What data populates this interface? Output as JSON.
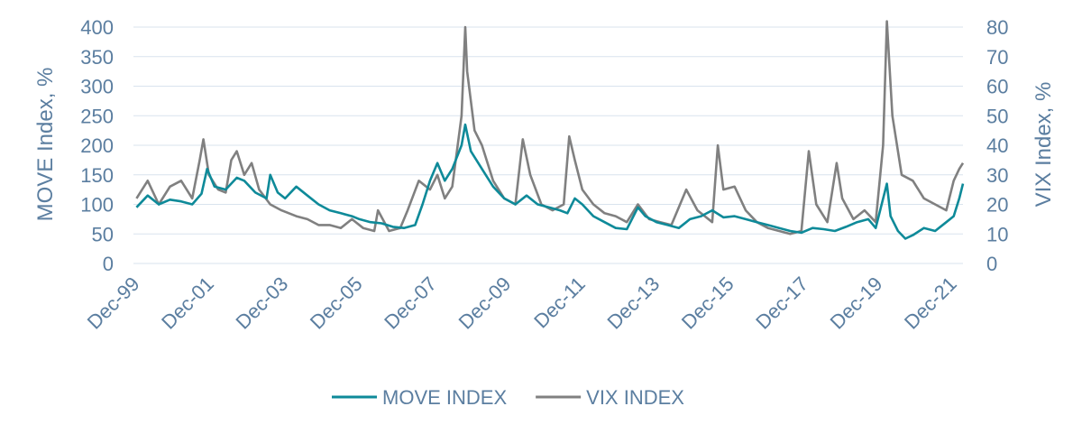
{
  "chart_data": {
    "type": "line",
    "title": "",
    "ylabel_left": "MOVE Index, %",
    "ylabel_right": "VIX Index, %",
    "ylim_left": [
      0,
      400
    ],
    "ylim_right": [
      0,
      80
    ],
    "yticks_left": [
      "0",
      "50",
      "100",
      "150",
      "200",
      "250",
      "300",
      "350",
      "400"
    ],
    "yticks_right": [
      "0",
      "10",
      "20",
      "30",
      "40",
      "50",
      "60",
      "70",
      "80"
    ],
    "xlim": [
      1999.917,
      2022.25
    ],
    "xticks": [
      {
        "label": "Dec-99",
        "x": 1999.917
      },
      {
        "label": "Dec-01",
        "x": 2001.917
      },
      {
        "label": "Dec-03",
        "x": 2003.917
      },
      {
        "label": "Dec-05",
        "x": 2005.917
      },
      {
        "label": "Dec-07",
        "x": 2007.917
      },
      {
        "label": "Dec-09",
        "x": 2009.917
      },
      {
        "label": "Dec-11",
        "x": 2011.917
      },
      {
        "label": "Dec-13",
        "x": 2013.917
      },
      {
        "label": "Dec-15",
        "x": 2015.917
      },
      {
        "label": "Dec-17",
        "x": 2017.917
      },
      {
        "label": "Dec-19",
        "x": 2019.917
      },
      {
        "label": "Dec-21",
        "x": 2021.917
      }
    ],
    "grid": true,
    "legend_position": "bottom",
    "series": [
      {
        "name": "MOVE INDEX",
        "axis": "left",
        "color": "#0e8a99",
        "points": [
          [
            2000.0,
            95
          ],
          [
            2000.3,
            115
          ],
          [
            2000.6,
            100
          ],
          [
            2000.9,
            108
          ],
          [
            2001.2,
            105
          ],
          [
            2001.5,
            100
          ],
          [
            2001.75,
            118
          ],
          [
            2001.9,
            160
          ],
          [
            2002.1,
            130
          ],
          [
            2002.4,
            125
          ],
          [
            2002.7,
            145
          ],
          [
            2002.9,
            140
          ],
          [
            2003.2,
            120
          ],
          [
            2003.5,
            110
          ],
          [
            2003.6,
            150
          ],
          [
            2003.8,
            120
          ],
          [
            2004.0,
            110
          ],
          [
            2004.3,
            130
          ],
          [
            2004.6,
            115
          ],
          [
            2004.9,
            100
          ],
          [
            2005.2,
            90
          ],
          [
            2005.5,
            85
          ],
          [
            2005.8,
            80
          ],
          [
            2006.0,
            75
          ],
          [
            2006.3,
            70
          ],
          [
            2006.6,
            68
          ],
          [
            2006.9,
            62
          ],
          [
            2007.2,
            60
          ],
          [
            2007.5,
            65
          ],
          [
            2007.7,
            100
          ],
          [
            2007.9,
            140
          ],
          [
            2008.1,
            170
          ],
          [
            2008.3,
            140
          ],
          [
            2008.5,
            160
          ],
          [
            2008.75,
            200
          ],
          [
            2008.85,
            235
          ],
          [
            2009.0,
            190
          ],
          [
            2009.3,
            160
          ],
          [
            2009.6,
            130
          ],
          [
            2009.9,
            110
          ],
          [
            2010.2,
            100
          ],
          [
            2010.5,
            115
          ],
          [
            2010.8,
            100
          ],
          [
            2011.1,
            95
          ],
          [
            2011.4,
            90
          ],
          [
            2011.6,
            85
          ],
          [
            2011.8,
            110
          ],
          [
            2012.0,
            100
          ],
          [
            2012.3,
            80
          ],
          [
            2012.6,
            70
          ],
          [
            2012.9,
            60
          ],
          [
            2013.2,
            58
          ],
          [
            2013.5,
            95
          ],
          [
            2013.7,
            80
          ],
          [
            2014.0,
            70
          ],
          [
            2014.3,
            65
          ],
          [
            2014.6,
            60
          ],
          [
            2014.9,
            75
          ],
          [
            2015.2,
            80
          ],
          [
            2015.5,
            90
          ],
          [
            2015.8,
            78
          ],
          [
            2016.1,
            80
          ],
          [
            2016.4,
            75
          ],
          [
            2016.7,
            70
          ],
          [
            2017.0,
            65
          ],
          [
            2017.3,
            60
          ],
          [
            2017.6,
            55
          ],
          [
            2017.9,
            52
          ],
          [
            2018.2,
            60
          ],
          [
            2018.5,
            58
          ],
          [
            2018.8,
            55
          ],
          [
            2019.1,
            62
          ],
          [
            2019.4,
            70
          ],
          [
            2019.7,
            75
          ],
          [
            2019.9,
            60
          ],
          [
            2020.2,
            135
          ],
          [
            2020.3,
            80
          ],
          [
            2020.5,
            55
          ],
          [
            2020.7,
            42
          ],
          [
            2020.9,
            48
          ],
          [
            2021.2,
            60
          ],
          [
            2021.5,
            55
          ],
          [
            2021.8,
            70
          ],
          [
            2022.0,
            80
          ],
          [
            2022.15,
            110
          ],
          [
            2022.25,
            135
          ]
        ]
      },
      {
        "name": "VIX INDEX",
        "axis": "right",
        "color": "#808080",
        "points": [
          [
            2000.0,
            22
          ],
          [
            2000.3,
            28
          ],
          [
            2000.6,
            20
          ],
          [
            2000.9,
            26
          ],
          [
            2001.2,
            28
          ],
          [
            2001.5,
            22
          ],
          [
            2001.7,
            35
          ],
          [
            2001.8,
            42
          ],
          [
            2001.95,
            30
          ],
          [
            2002.2,
            25
          ],
          [
            2002.4,
            24
          ],
          [
            2002.55,
            35
          ],
          [
            2002.7,
            38
          ],
          [
            2002.9,
            30
          ],
          [
            2003.1,
            34
          ],
          [
            2003.3,
            25
          ],
          [
            2003.6,
            20
          ],
          [
            2003.9,
            18
          ],
          [
            2004.3,
            16
          ],
          [
            2004.6,
            15
          ],
          [
            2004.9,
            13
          ],
          [
            2005.2,
            13
          ],
          [
            2005.5,
            12
          ],
          [
            2005.8,
            15
          ],
          [
            2006.1,
            12
          ],
          [
            2006.4,
            11
          ],
          [
            2006.5,
            18
          ],
          [
            2006.8,
            11
          ],
          [
            2007.1,
            12
          ],
          [
            2007.3,
            18
          ],
          [
            2007.6,
            28
          ],
          [
            2007.9,
            25
          ],
          [
            2008.1,
            30
          ],
          [
            2008.3,
            22
          ],
          [
            2008.5,
            26
          ],
          [
            2008.75,
            50
          ],
          [
            2008.85,
            80
          ],
          [
            2008.9,
            65
          ],
          [
            2009.1,
            45
          ],
          [
            2009.3,
            40
          ],
          [
            2009.6,
            28
          ],
          [
            2009.9,
            22
          ],
          [
            2010.2,
            20
          ],
          [
            2010.4,
            42
          ],
          [
            2010.6,
            30
          ],
          [
            2010.9,
            20
          ],
          [
            2011.2,
            18
          ],
          [
            2011.5,
            20
          ],
          [
            2011.65,
            43
          ],
          [
            2011.8,
            35
          ],
          [
            2012.0,
            25
          ],
          [
            2012.3,
            20
          ],
          [
            2012.6,
            17
          ],
          [
            2012.9,
            16
          ],
          [
            2013.2,
            14
          ],
          [
            2013.5,
            20
          ],
          [
            2013.8,
            15
          ],
          [
            2014.1,
            14
          ],
          [
            2014.4,
            13
          ],
          [
            2014.8,
            25
          ],
          [
            2015.1,
            18
          ],
          [
            2015.5,
            14
          ],
          [
            2015.65,
            40
          ],
          [
            2015.8,
            25
          ],
          [
            2016.1,
            26
          ],
          [
            2016.4,
            18
          ],
          [
            2016.7,
            14
          ],
          [
            2017.0,
            12
          ],
          [
            2017.3,
            11
          ],
          [
            2017.6,
            10
          ],
          [
            2017.9,
            11
          ],
          [
            2018.1,
            38
          ],
          [
            2018.3,
            20
          ],
          [
            2018.6,
            14
          ],
          [
            2018.85,
            34
          ],
          [
            2019.0,
            22
          ],
          [
            2019.3,
            15
          ],
          [
            2019.6,
            18
          ],
          [
            2019.9,
            14
          ],
          [
            2020.1,
            40
          ],
          [
            2020.2,
            82
          ],
          [
            2020.35,
            50
          ],
          [
            2020.6,
            30
          ],
          [
            2020.9,
            28
          ],
          [
            2021.2,
            22
          ],
          [
            2021.5,
            20
          ],
          [
            2021.8,
            18
          ],
          [
            2022.0,
            28
          ],
          [
            2022.15,
            32
          ],
          [
            2022.25,
            34
          ]
        ]
      }
    ]
  }
}
